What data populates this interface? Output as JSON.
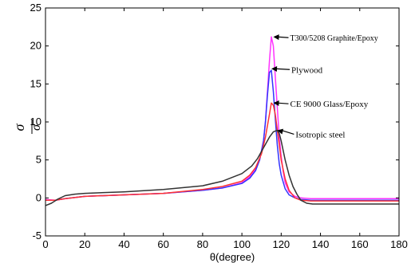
{
  "chart_data": {
    "type": "line",
    "title": "",
    "xlabel": "θ(degree)",
    "ylabel": "σ̄ / σ",
    "ylabel_parts": {
      "top": "σ",
      "bottom": "σ"
    },
    "xlim": [
      0,
      180
    ],
    "ylim": [
      -5,
      25
    ],
    "x_ticks": [
      0,
      20,
      40,
      60,
      80,
      100,
      120,
      140,
      160,
      180
    ],
    "y_ticks": [
      -5,
      0,
      5,
      10,
      15,
      20,
      25
    ],
    "grid": false,
    "series": [
      {
        "color": "#ff33ff",
        "x": [
          0,
          5,
          10,
          20,
          40,
          60,
          80,
          90,
          100,
          104,
          107,
          109,
          111,
          112,
          113,
          114,
          115,
          116,
          117,
          118,
          119,
          120,
          121,
          122,
          124,
          127,
          130,
          135,
          140,
          160,
          180
        ],
        "y": [
          -0.2,
          -0.3,
          -0.1,
          0.2,
          0.4,
          0.6,
          1.0,
          1.3,
          2.0,
          2.8,
          3.8,
          5.0,
          7.5,
          10.0,
          14.0,
          18.0,
          21.2,
          20.0,
          16.0,
          12.0,
          8.0,
          5.5,
          3.5,
          2.0,
          0.8,
          0.2,
          0.0,
          -0.1,
          -0.1,
          -0.1,
          -0.1
        ]
      },
      {
        "color": "#3333ff",
        "x": [
          0,
          5,
          10,
          20,
          40,
          60,
          80,
          90,
          100,
          104,
          107,
          109,
          111,
          112,
          113,
          114,
          115,
          116,
          117,
          118,
          119,
          120,
          122,
          124,
          127,
          130,
          135,
          140,
          160,
          180
        ],
        "y": [
          -0.3,
          -0.3,
          -0.1,
          0.2,
          0.4,
          0.6,
          1.0,
          1.3,
          1.9,
          2.6,
          3.6,
          5.0,
          7.5,
          10.0,
          13.5,
          16.5,
          16.8,
          14.0,
          10.5,
          7.0,
          4.5,
          3.0,
          1.2,
          0.4,
          0.0,
          -0.2,
          -0.3,
          -0.3,
          -0.3,
          -0.3
        ]
      },
      {
        "color": "#ff3333",
        "x": [
          0,
          5,
          10,
          20,
          40,
          60,
          80,
          90,
          100,
          104,
          107,
          110,
          112,
          114,
          115,
          116,
          117,
          118,
          119,
          120,
          122,
          124,
          127,
          130,
          135,
          140,
          160,
          180
        ],
        "y": [
          -0.3,
          -0.3,
          -0.1,
          0.2,
          0.4,
          0.6,
          1.1,
          1.5,
          2.2,
          3.0,
          4.0,
          5.8,
          8.0,
          11.0,
          12.5,
          12.2,
          11.0,
          9.0,
          7.0,
          5.0,
          2.5,
          1.0,
          0.0,
          -0.3,
          -0.4,
          -0.4,
          -0.4,
          -0.4
        ]
      },
      {
        "color": "#333333",
        "x": [
          0,
          3,
          6,
          10,
          15,
          20,
          40,
          60,
          80,
          90,
          100,
          105,
          108,
          111,
          114,
          116,
          118,
          119,
          120,
          122,
          124,
          126,
          128,
          130,
          133,
          136,
          140,
          150,
          160,
          180
        ],
        "y": [
          -1.0,
          -0.7,
          -0.2,
          0.3,
          0.5,
          0.6,
          0.8,
          1.1,
          1.6,
          2.2,
          3.2,
          4.2,
          5.2,
          6.6,
          8.0,
          8.7,
          8.9,
          8.5,
          7.5,
          5.0,
          3.0,
          1.5,
          0.5,
          -0.3,
          -0.7,
          -0.8,
          -0.8,
          -0.8,
          -0.8,
          -0.8
        ]
      }
    ],
    "annotations": [
      {
        "text": "T300/5208 Graphite/Epoxy",
        "x": 116,
        "y": 21.2
      },
      {
        "text": "Plywood",
        "x": 115,
        "y": 17.0
      },
      {
        "text": "CE 9000 Glass/Epoxy",
        "x": 116,
        "y": 12.5
      },
      {
        "text": "Isotropic steel",
        "x": 118,
        "y": 8.9
      }
    ]
  }
}
